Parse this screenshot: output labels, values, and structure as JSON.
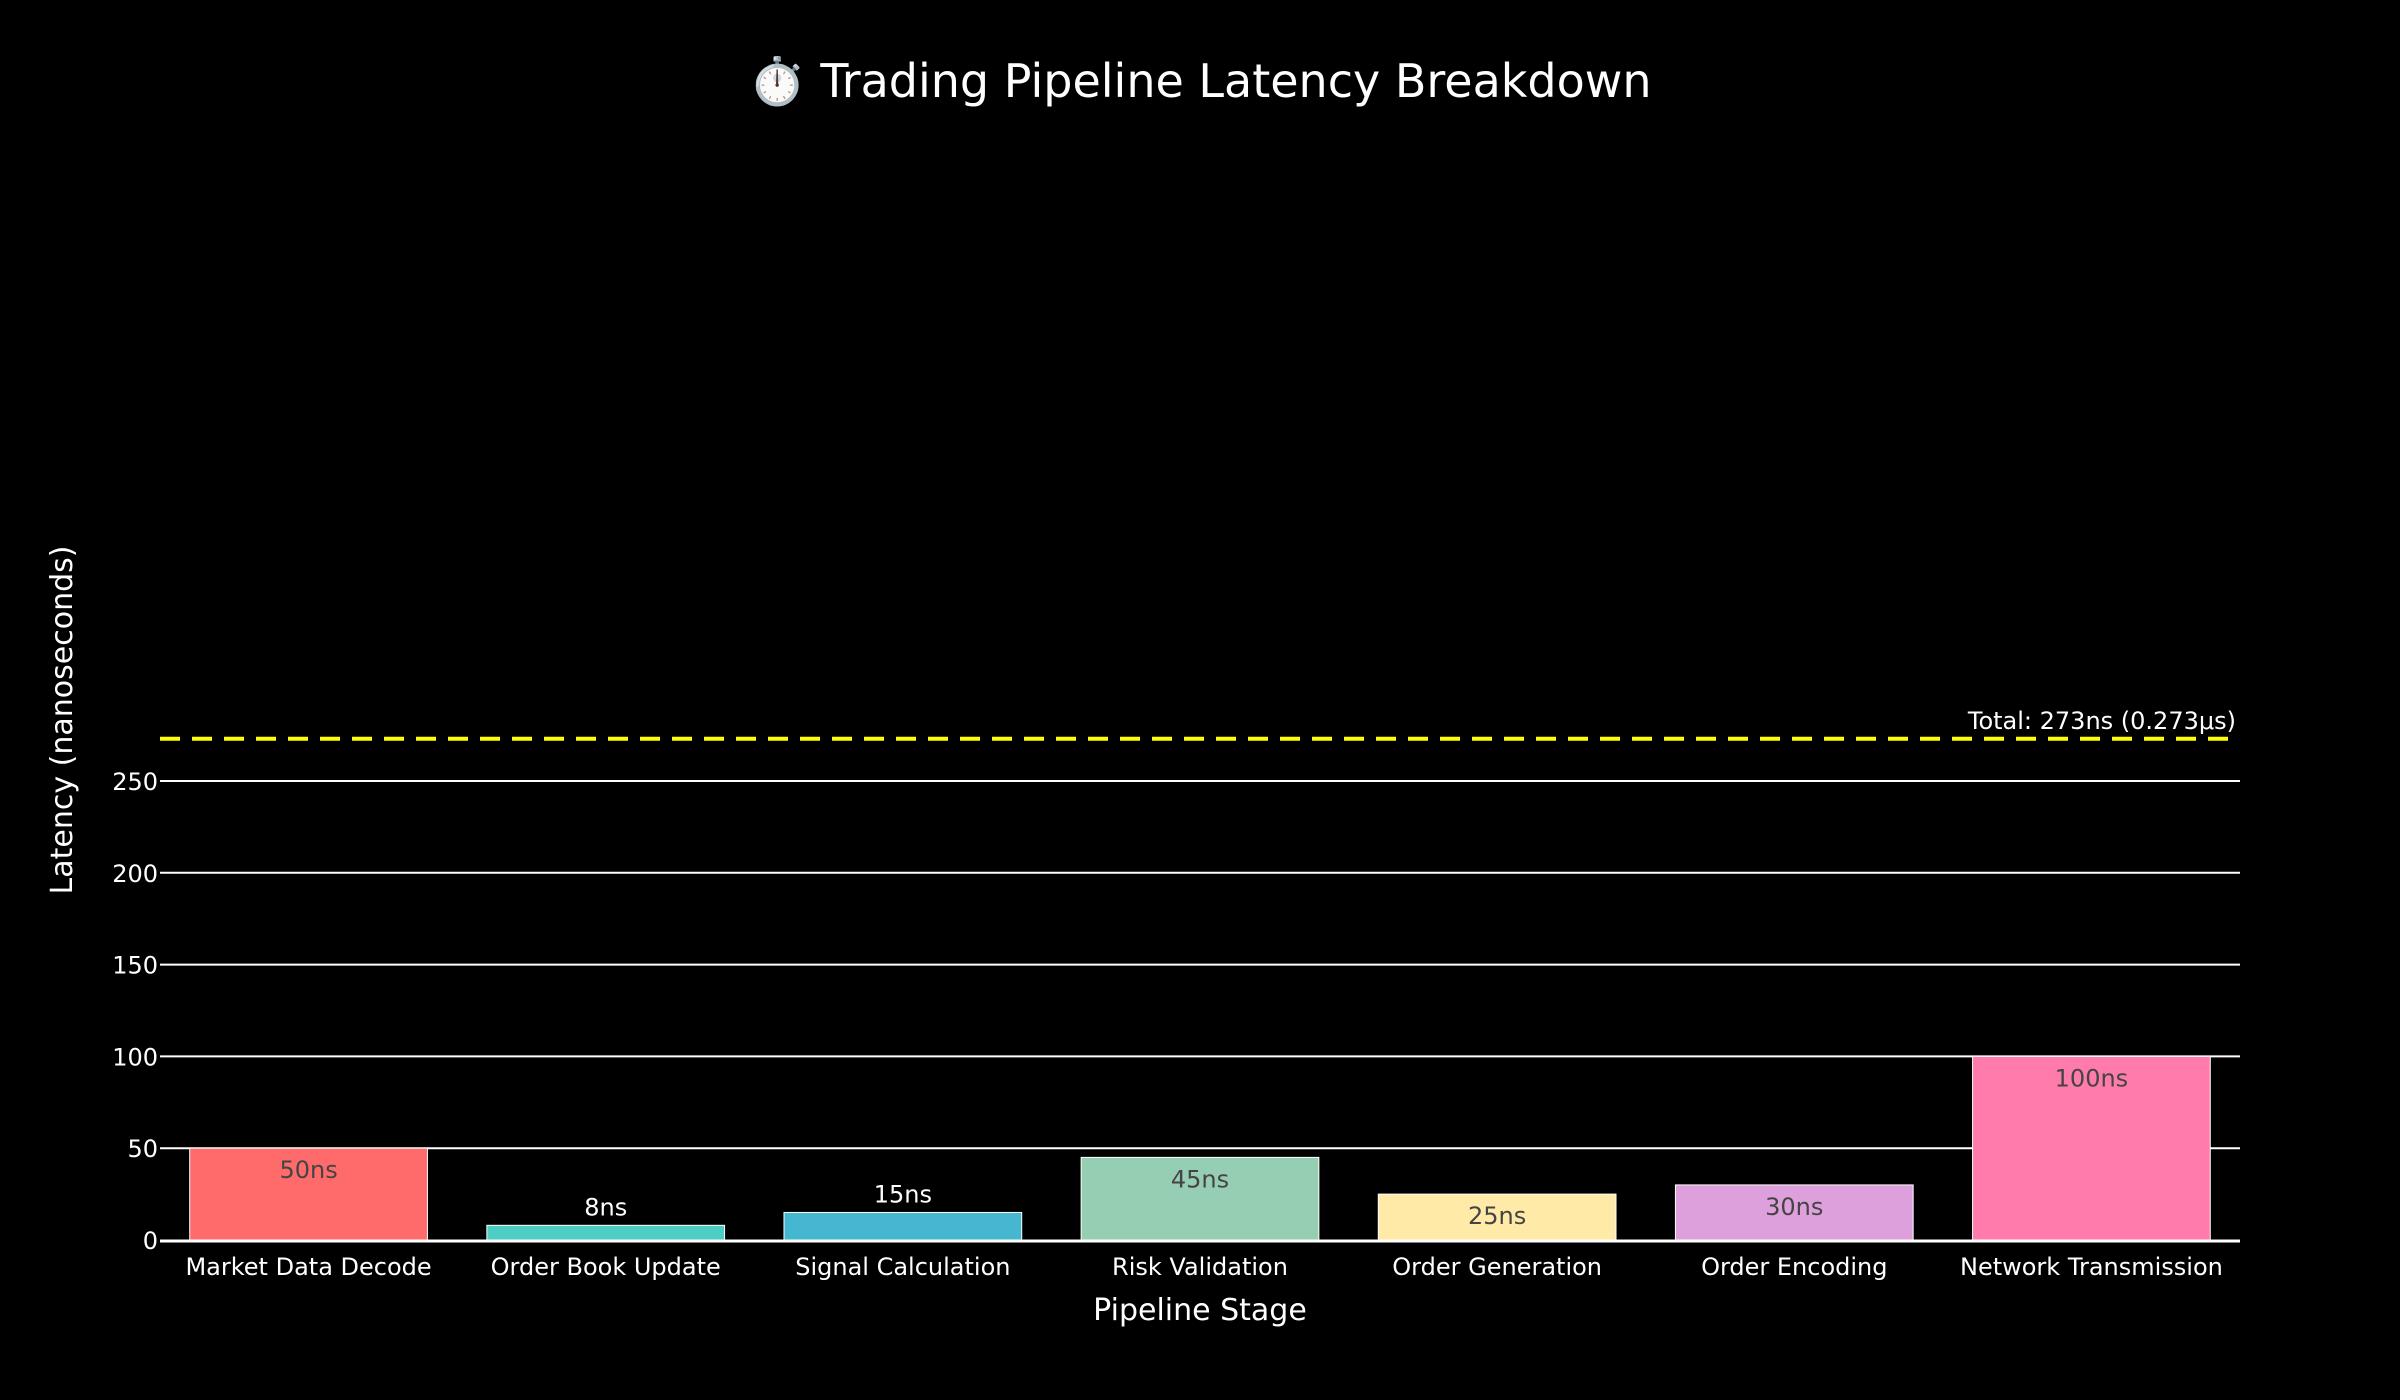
{
  "chart_data": {
    "type": "bar",
    "title": "⏱️ Trading Pipeline Latency Breakdown",
    "xlabel": "Pipeline Stage",
    "ylabel": "Latency (nanoseconds)",
    "categories": [
      "Market Data Decode",
      "Order Book Update",
      "Signal Calculation",
      "Risk Validation",
      "Order Generation",
      "Order Encoding",
      "Network Transmission"
    ],
    "values": [
      50,
      8,
      15,
      45,
      25,
      30,
      100
    ],
    "data_labels": [
      "50ns",
      "8ns",
      "15ns",
      "45ns",
      "25ns",
      "30ns",
      "100ns"
    ],
    "bar_colors": [
      "#FF6B6B",
      "#4ECDC4",
      "#45B7D1",
      "#96CEB4",
      "#FFEAA7",
      "#DDA0DD",
      "#FF7BAC"
    ],
    "ylim": [
      0,
      285
    ],
    "yticks": [
      0,
      50,
      100,
      150,
      200,
      250
    ],
    "grid": true,
    "reference_line": {
      "value": 273,
      "label": "Total: 273ns (0.273μs)",
      "color": "#FFFF00",
      "style": "dashed"
    },
    "background": "#000000"
  }
}
